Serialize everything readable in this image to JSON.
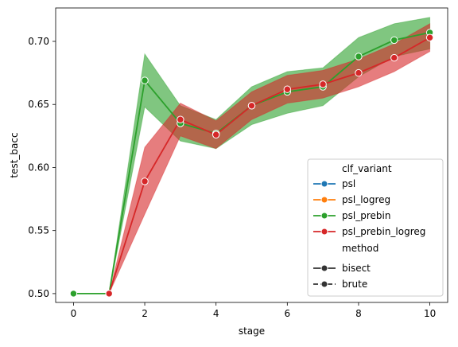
{
  "chart_data": {
    "type": "line",
    "xlabel": "stage",
    "ylabel": "test_bacc",
    "xlim": [
      -0.5,
      10.5
    ],
    "ylim": [
      0.493,
      0.7265
    ],
    "x_ticks": [
      0,
      2,
      4,
      6,
      8,
      10
    ],
    "y_ticks": [
      0.5,
      0.55,
      0.6,
      0.65,
      0.7
    ],
    "x_tick_labels": [
      "0",
      "2",
      "4",
      "6",
      "8",
      "10"
    ],
    "y_tick_labels": [
      "0.50",
      "0.55",
      "0.60",
      "0.65",
      "0.70"
    ],
    "grid": false,
    "x": [
      0,
      1,
      2,
      3,
      4,
      5,
      6,
      7,
      8,
      9,
      10
    ],
    "series": [
      {
        "name": "psl_prebin",
        "color": "#2ca02c",
        "values": [
          0.5,
          0.5,
          0.669,
          0.635,
          0.627,
          0.649,
          0.66,
          0.664,
          0.688,
          0.701,
          0.707
        ],
        "ci_low": [
          0.5,
          0.5,
          0.648,
          0.621,
          0.615,
          0.634,
          0.643,
          0.649,
          0.672,
          0.688,
          0.694
        ],
        "ci_high": [
          0.5,
          0.5,
          0.69,
          0.649,
          0.638,
          0.664,
          0.676,
          0.679,
          0.703,
          0.714,
          0.719
        ]
      },
      {
        "name": "psl_prebin_logreg",
        "color": "#d62728",
        "values": [
          null,
          0.5,
          0.589,
          0.638,
          0.626,
          0.649,
          0.662,
          0.666,
          0.675,
          0.687,
          0.703
        ],
        "ci_low": [
          null,
          0.5,
          0.563,
          0.625,
          0.615,
          0.638,
          0.651,
          0.655,
          0.664,
          0.676,
          0.692
        ],
        "ci_high": [
          null,
          0.5,
          0.616,
          0.651,
          0.637,
          0.66,
          0.673,
          0.677,
          0.686,
          0.698,
          0.714
        ]
      }
    ],
    "legend": {
      "placement": "lower-right",
      "title_1": "clf_variant",
      "entries": [
        {
          "name": "psl",
          "color": "#1f77b4",
          "dash": "solid"
        },
        {
          "name": "psl_logreg",
          "color": "#ff7f0e",
          "dash": "solid"
        },
        {
          "name": "psl_prebin",
          "color": "#2ca02c",
          "dash": "solid"
        },
        {
          "name": "psl_prebin_logreg",
          "color": "#d62728",
          "dash": "solid"
        }
      ],
      "title_2": "method",
      "styles": [
        {
          "name": "bisect",
          "color": "#333333",
          "dash": "solid"
        },
        {
          "name": "brute",
          "color": "#333333",
          "dash": "dashed"
        }
      ]
    }
  }
}
